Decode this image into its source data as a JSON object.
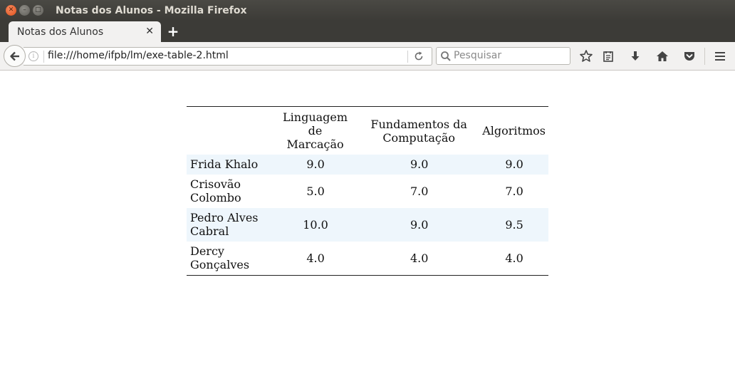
{
  "window": {
    "title": "Notas dos Alunos - Mozilla Firefox"
  },
  "tabs": [
    {
      "label": "Notas dos Alunos",
      "active": true
    }
  ],
  "navbar": {
    "url": "file:///home/ifpb/lm/exe-table-2.html",
    "search_placeholder": "Pesquisar"
  },
  "colors": {
    "row_highlight": "#eef6fc",
    "titlebar": "#3c3b37",
    "close_button": "#e0501b"
  },
  "table": {
    "headers": [
      "",
      "Linguagem de Marcação",
      "Fundamentos da Computação",
      "Algoritmos"
    ],
    "header_lines": [
      [
        ""
      ],
      [
        "Linguagem de",
        "Marcação"
      ],
      [
        "Fundamentos da",
        "Computação"
      ],
      [
        "Algoritmos"
      ]
    ],
    "rows": [
      {
        "name": "Frida Khalo",
        "name_lines": [
          "Frida Khalo"
        ],
        "grades": [
          "9.0",
          "9.0",
          "9.0"
        ],
        "highlighted": true
      },
      {
        "name": "Crisovão Colombo",
        "name_lines": [
          "Crisovão",
          "Colombo"
        ],
        "grades": [
          "5.0",
          "7.0",
          "7.0"
        ],
        "highlighted": false
      },
      {
        "name": "Pedro Alves Cabral",
        "name_lines": [
          "Pedro Alves",
          "Cabral"
        ],
        "grades": [
          "10.0",
          "9.0",
          "9.5"
        ],
        "highlighted": true
      },
      {
        "name": "Dercy Gonçalves",
        "name_lines": [
          "Dercy",
          "Gonçalves"
        ],
        "grades": [
          "4.0",
          "4.0",
          "4.0"
        ],
        "highlighted": false
      }
    ]
  }
}
